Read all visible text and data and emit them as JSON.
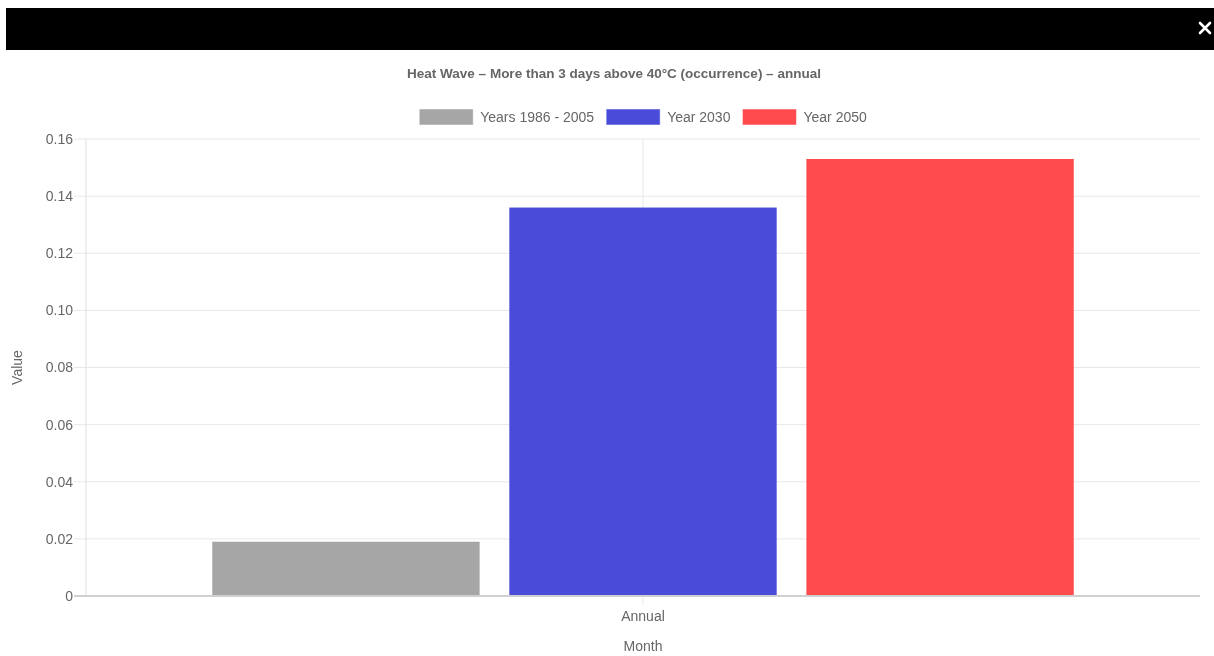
{
  "chart_data": {
    "type": "bar",
    "title": "Heat Wave – More than 3 days above 40°C (occurrence) – annual",
    "categories": [
      "Annual"
    ],
    "series": [
      {
        "name": "Years 1986 - 2005",
        "color": "#a6a6a6",
        "values": [
          0.019
        ]
      },
      {
        "name": "Year 2030",
        "color": "#4a4bd9",
        "values": [
          0.136
        ]
      },
      {
        "name": "Year 2050",
        "color": "#ff4b4e",
        "values": [
          0.153
        ]
      }
    ],
    "xlabel": "Month",
    "ylabel": "Value",
    "ylim": [
      0,
      0.16
    ],
    "yticks": [
      0,
      0.02,
      0.04,
      0.06,
      0.08,
      {
        "value": 0.1,
        "label": "0.10"
      },
      0.12,
      0.14,
      0.16
    ],
    "grid": true,
    "legend": "top"
  }
}
